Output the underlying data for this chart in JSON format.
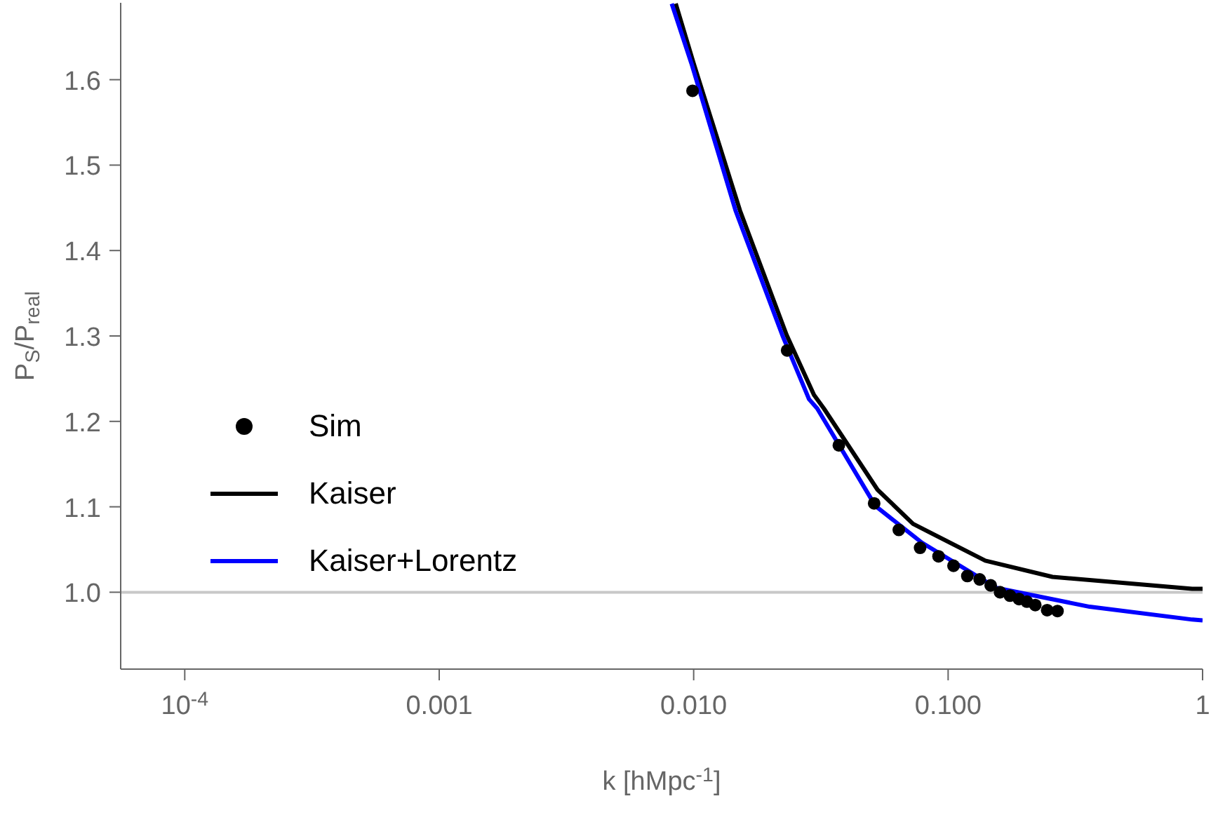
{
  "chart_data": {
    "type": "line",
    "xlabel": "k [hMpc$^{-1}$]",
    "ylabel": "P$_{S}$/P$_{real}$",
    "log": "x",
    "xlim": [
      5.6e-05,
      1
    ],
    "xticks": [
      {
        "value": 0.0001,
        "label": "10$^{-4}$"
      },
      0.001,
      {
        "value": 0.01,
        "label": "0.010"
      },
      {
        "value": 0.1,
        "label": "0.100"
      },
      1
    ],
    "ylim": [
      0.91,
      1.69
    ],
    "yticks": [
      {
        "value": 1,
        "label": "1.0"
      },
      1.1,
      1.2,
      1.3,
      1.4,
      1.5,
      1.6
    ],
    "grid": false,
    "legend": "left",
    "marker": "none",
    "line_style": "solid",
    "ref_lines": [
      {
        "axis": "y",
        "value": 1,
        "color": "#c8c8c8"
      }
    ],
    "series": [
      {
        "name": "Sim",
        "type": "scatter",
        "marker": "circle",
        "color": "#000000",
        "x": [
          0.0099,
          0.0233,
          0.0372,
          0.0512,
          0.064,
          0.0776,
          0.0917,
          0.105,
          0.119,
          0.133,
          0.147,
          0.16,
          0.175,
          0.19,
          0.204,
          0.22,
          0.245,
          0.269
        ],
        "values": [
          1.587,
          1.283,
          1.172,
          1.104,
          1.073,
          1.052,
          1.042,
          1.031,
          1.019,
          1.015,
          1.008,
          1.0,
          0.996,
          0.992,
          0.989,
          0.985,
          0.979,
          0.978
        ]
      },
      {
        "name": "Kaiser",
        "type": "line",
        "color": "#000000",
        "x": [
          0.0085,
          0.01,
          0.0152,
          0.0232,
          0.0297,
          0.0325,
          0.0528,
          0.0728,
          0.14,
          0.257,
          0.91,
          1
        ],
        "values": [
          1.689,
          1.619,
          1.447,
          1.301,
          1.231,
          1.215,
          1.12,
          1.08,
          1.037,
          1.018,
          1.004,
          1.004
        ]
      },
      {
        "name": "Kaiser+Lorentz",
        "type": "line",
        "color": "#0000ff",
        "x": [
          0.0082,
          0.0098,
          0.0146,
          0.0223,
          0.0284,
          0.0306,
          0.0518,
          0.0789,
          0.155,
          0.36,
          0.91,
          1
        ],
        "values": [
          1.689,
          1.619,
          1.447,
          1.301,
          1.226,
          1.215,
          1.101,
          1.058,
          1.005,
          0.983,
          0.968,
          0.967
        ]
      }
    ]
  }
}
